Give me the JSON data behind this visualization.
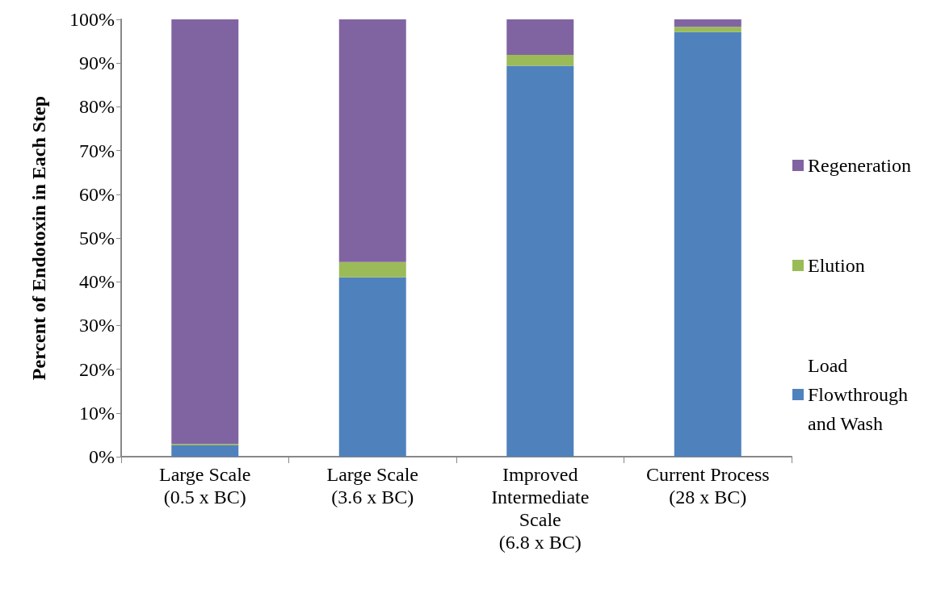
{
  "chart_data": {
    "type": "bar",
    "stacked": true,
    "ylabel": "Percent of Endotoxin in Each Step",
    "categories": [
      "Large Scale\n(0.5 x BC)",
      "Large Scale\n(3.6 x BC)",
      "Improved\nIntermediate\nScale\n(6.8 x BC)",
      "Current Process\n(28 x BC)"
    ],
    "series": [
      {
        "name": "Load Flowthrough and Wash",
        "color": "#4f81bd",
        "values": [
          2.6,
          41.0,
          89.4,
          97.1
        ]
      },
      {
        "name": "Elution",
        "color": "#9bbb59",
        "values": [
          0.3,
          3.5,
          2.5,
          1.2
        ]
      },
      {
        "name": "Regeneration",
        "color": "#8064a2",
        "values": [
          97.1,
          55.5,
          8.1,
          1.7
        ]
      }
    ],
    "ylim": [
      0,
      100
    ],
    "yticks": [
      {
        "value": 0,
        "label": "0%"
      },
      {
        "value": 10,
        "label": "10%"
      },
      {
        "value": 20,
        "label": "20%"
      },
      {
        "value": 30,
        "label": "30%"
      },
      {
        "value": 40,
        "label": "40%"
      },
      {
        "value": 50,
        "label": "50%"
      },
      {
        "value": 60,
        "label": "60%"
      },
      {
        "value": 70,
        "label": "70%"
      },
      {
        "value": 80,
        "label": "80%"
      },
      {
        "value": 90,
        "label": "90%"
      },
      {
        "value": 100,
        "label": "100%"
      }
    ],
    "grid": false,
    "legend": "right"
  }
}
